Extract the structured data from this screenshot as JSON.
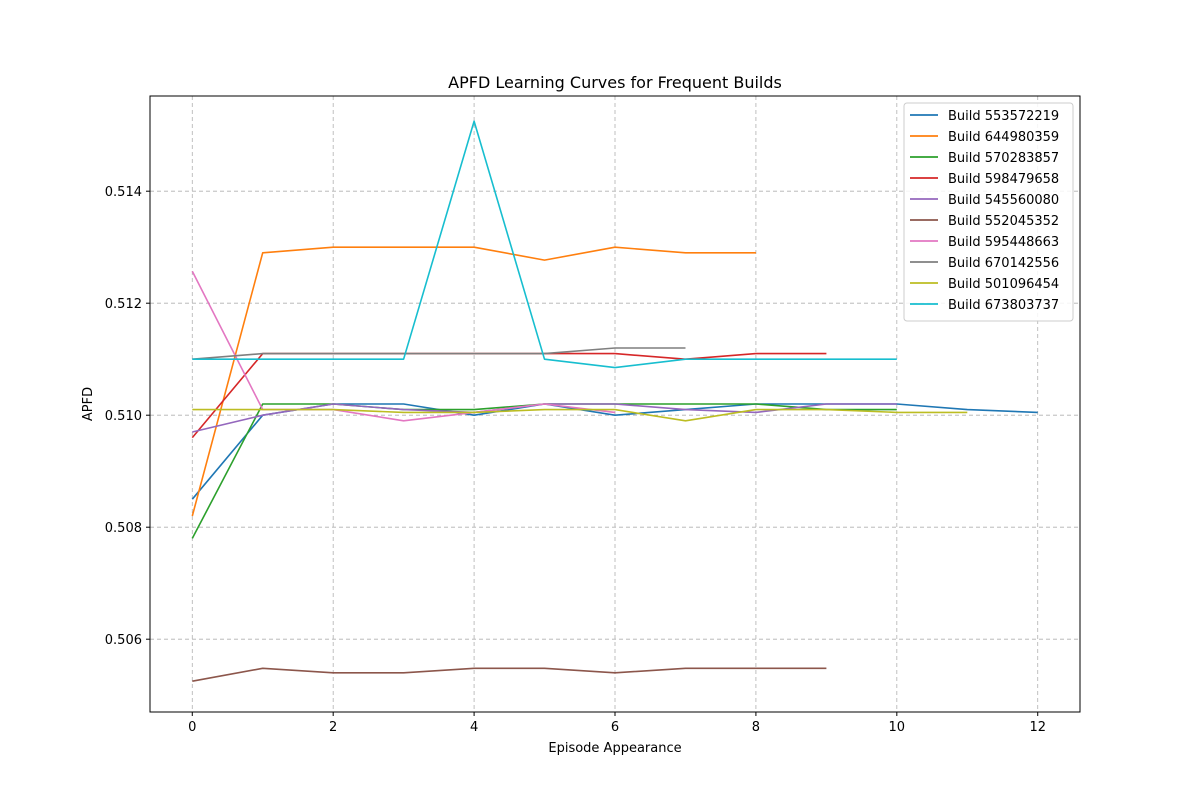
{
  "chart_data": {
    "type": "line",
    "title": "APFD Learning Curves for Frequent Builds",
    "xlabel": "Episode Appearance",
    "ylabel": "APFD",
    "xlim": [
      -0.6,
      12.6
    ],
    "ylim": [
      0.5047,
      0.5157
    ],
    "xticks": [
      0,
      2,
      4,
      6,
      8,
      10,
      12
    ],
    "yticks": [
      0.506,
      0.508,
      0.51,
      0.512,
      0.514
    ],
    "ytick_labels": [
      "0.506",
      "0.508",
      "0.510",
      "0.512",
      "0.514"
    ],
    "grid": true,
    "legend_position": "top-right",
    "series": [
      {
        "name": "Build 553572219",
        "color": "#1f77b4",
        "x": [
          0,
          1,
          2,
          3,
          4,
          5,
          6,
          7,
          8,
          9,
          10,
          11,
          12
        ],
        "y": [
          0.5085,
          0.51,
          0.5102,
          0.5102,
          0.51,
          0.5102,
          0.51,
          0.5101,
          0.5102,
          0.5102,
          0.5102,
          0.5101,
          0.51005
        ]
      },
      {
        "name": "Build 644980359",
        "color": "#ff7f0e",
        "x": [
          0,
          1,
          2,
          3,
          4,
          5,
          6,
          7,
          8
        ],
        "y": [
          0.5082,
          0.5129,
          0.513,
          0.513,
          0.513,
          0.51277,
          0.513,
          0.5129,
          0.5129
        ]
      },
      {
        "name": "Build 570283857",
        "color": "#2ca02c",
        "x": [
          0,
          1,
          2,
          3,
          4,
          5,
          6,
          7,
          8,
          9,
          10
        ],
        "y": [
          0.5078,
          0.5102,
          0.5102,
          0.5101,
          0.5101,
          0.5102,
          0.5102,
          0.5102,
          0.5102,
          0.5101,
          0.5101
        ]
      },
      {
        "name": "Build 598479658",
        "color": "#d62728",
        "x": [
          0,
          1,
          2,
          3,
          4,
          5,
          6,
          7,
          8,
          9
        ],
        "y": [
          0.5096,
          0.5111,
          0.5111,
          0.5111,
          0.5111,
          0.5111,
          0.5111,
          0.511,
          0.5111,
          0.5111
        ]
      },
      {
        "name": "Build 545560080",
        "color": "#9467bd",
        "x": [
          0,
          1,
          2,
          3,
          4,
          5,
          6,
          7,
          8,
          9,
          10
        ],
        "y": [
          0.5097,
          0.51,
          0.5102,
          0.5101,
          0.51005,
          0.5102,
          0.5102,
          0.5101,
          0.51005,
          0.5102,
          0.5102
        ]
      },
      {
        "name": "Build 552045352",
        "color": "#8c564b",
        "x": [
          0,
          1,
          2,
          3,
          4,
          5,
          6,
          7,
          8,
          9
        ],
        "y": [
          0.50525,
          0.50548,
          0.5054,
          0.5054,
          0.50548,
          0.50548,
          0.5054,
          0.50548,
          0.50548,
          0.50548
        ]
      },
      {
        "name": "Build 595448663",
        "color": "#e377c2",
        "x": [
          0,
          1,
          2,
          3,
          4,
          5,
          6
        ],
        "y": [
          0.51257,
          0.5101,
          0.5101,
          0.5099,
          0.51005,
          0.5102,
          0.51005
        ]
      },
      {
        "name": "Build 670142556",
        "color": "#7f7f7f",
        "x": [
          0,
          1,
          2,
          3,
          4,
          5,
          6,
          7
        ],
        "y": [
          0.511,
          0.5111,
          0.5111,
          0.5111,
          0.5111,
          0.5111,
          0.5112,
          0.5112
        ]
      },
      {
        "name": "Build 501096454",
        "color": "#bcbd22",
        "x": [
          0,
          1,
          2,
          3,
          4,
          5,
          6,
          7,
          8,
          9,
          10,
          11
        ],
        "y": [
          0.5101,
          0.5101,
          0.5101,
          0.51005,
          0.51005,
          0.5101,
          0.5101,
          0.5099,
          0.5101,
          0.5101,
          0.51005,
          0.51005
        ]
      },
      {
        "name": "Build 673803737",
        "color": "#17becf",
        "x": [
          0,
          1,
          2,
          3,
          4,
          5,
          6,
          7,
          8,
          9,
          10
        ],
        "y": [
          0.511,
          0.511,
          0.511,
          0.511,
          0.51525,
          0.511,
          0.51085,
          0.511,
          0.511,
          0.511,
          0.511
        ]
      }
    ]
  }
}
